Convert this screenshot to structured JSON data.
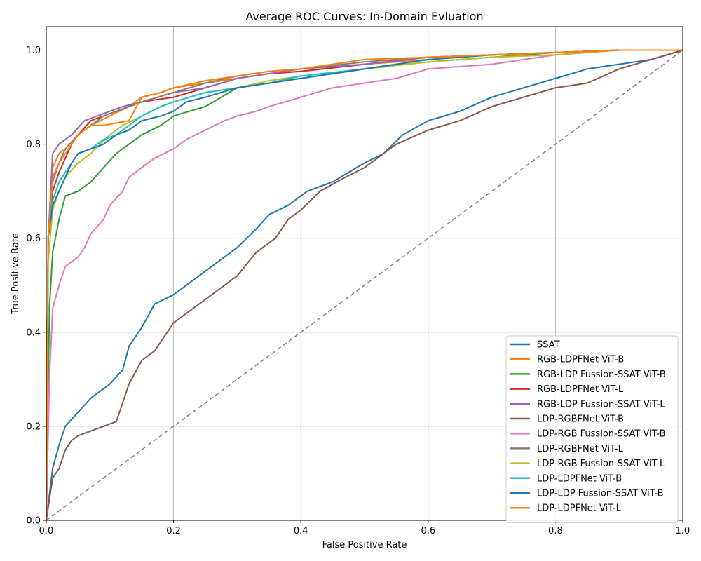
{
  "chart_data": {
    "type": "line",
    "title": "Average ROC Curves: In-Domain Evluation",
    "xlabel": "False Positive Rate",
    "ylabel": "True Positive Rate",
    "xlim": [
      0.0,
      1.0
    ],
    "ylim": [
      0.0,
      1.05
    ],
    "xticks": [
      0.0,
      0.2,
      0.4,
      0.6,
      0.8,
      1.0
    ],
    "yticks": [
      0.0,
      0.2,
      0.4,
      0.6,
      0.8,
      1.0
    ],
    "xtick_labels": [
      "0.0",
      "0.2",
      "0.4",
      "0.6",
      "0.8",
      "1.0"
    ],
    "ytick_labels": [
      "0.0",
      "0.2",
      "0.4",
      "0.6",
      "0.8",
      "1.0"
    ],
    "grid": true,
    "legend_position": "lower-right",
    "diagonal": {
      "x": [
        0,
        1
      ],
      "y": [
        0,
        1
      ],
      "style": "dashed",
      "color": "#808080"
    },
    "series": [
      {
        "name": "SSAT",
        "color": "#1f77b4",
        "x": [
          0,
          0.01,
          0.02,
          0.03,
          0.05,
          0.07,
          0.1,
          0.12,
          0.13,
          0.15,
          0.17,
          0.2,
          0.24,
          0.27,
          0.3,
          0.33,
          0.35,
          0.38,
          0.41,
          0.45,
          0.5,
          0.53,
          0.56,
          0.6,
          0.65,
          0.7,
          0.75,
          0.8,
          0.85,
          0.9,
          0.95,
          1.0
        ],
        "y": [
          0,
          0.11,
          0.16,
          0.2,
          0.23,
          0.26,
          0.29,
          0.32,
          0.37,
          0.41,
          0.46,
          0.48,
          0.52,
          0.55,
          0.58,
          0.62,
          0.65,
          0.67,
          0.7,
          0.72,
          0.76,
          0.78,
          0.82,
          0.85,
          0.87,
          0.9,
          0.92,
          0.94,
          0.96,
          0.97,
          0.98,
          1.0
        ]
      },
      {
        "name": "RGB-LDPFNet ViT-B",
        "color": "#ff7f0e",
        "x": [
          0,
          0.003,
          0.01,
          0.02,
          0.03,
          0.05,
          0.07,
          0.1,
          0.13,
          0.15,
          0.18,
          0.2,
          0.25,
          0.3,
          0.35,
          0.4,
          0.5,
          0.6,
          0.7,
          0.8,
          0.9,
          1.0
        ],
        "y": [
          0,
          0.6,
          0.75,
          0.78,
          0.79,
          0.82,
          0.84,
          0.86,
          0.88,
          0.9,
          0.91,
          0.92,
          0.93,
          0.94,
          0.95,
          0.955,
          0.97,
          0.98,
          0.99,
          0.995,
          1.0,
          1.0
        ]
      },
      {
        "name": "RGB-LDP Fussion-SSAT ViT-B",
        "color": "#2ca02c",
        "x": [
          0,
          0.005,
          0.01,
          0.02,
          0.03,
          0.05,
          0.07,
          0.09,
          0.11,
          0.13,
          0.15,
          0.18,
          0.2,
          0.25,
          0.3,
          0.35,
          0.4,
          0.5,
          0.6,
          0.7,
          0.8,
          0.9,
          1.0
        ],
        "y": [
          0,
          0.45,
          0.57,
          0.64,
          0.69,
          0.7,
          0.72,
          0.75,
          0.78,
          0.8,
          0.82,
          0.84,
          0.86,
          0.88,
          0.92,
          0.93,
          0.94,
          0.96,
          0.975,
          0.985,
          0.995,
          1.0,
          1.0
        ]
      },
      {
        "name": "RGB-LDPFNet ViT-L",
        "color": "#d62728",
        "x": [
          0,
          0.003,
          0.01,
          0.02,
          0.03,
          0.04,
          0.05,
          0.07,
          0.09,
          0.11,
          0.13,
          0.15,
          0.2,
          0.25,
          0.3,
          0.35,
          0.4,
          0.5,
          0.6,
          0.7,
          0.8,
          0.9,
          1.0
        ],
        "y": [
          0,
          0.6,
          0.7,
          0.74,
          0.77,
          0.8,
          0.82,
          0.85,
          0.86,
          0.87,
          0.88,
          0.89,
          0.9,
          0.92,
          0.94,
          0.95,
          0.955,
          0.97,
          0.985,
          0.99,
          0.995,
          1.0,
          1.0
        ]
      },
      {
        "name": "RGB-LDP Fussion-SSAT ViT-L",
        "color": "#9467bd",
        "x": [
          0,
          0.003,
          0.01,
          0.02,
          0.03,
          0.04,
          0.06,
          0.08,
          0.1,
          0.12,
          0.15,
          0.2,
          0.25,
          0.3,
          0.35,
          0.4,
          0.5,
          0.6,
          0.7,
          0.8,
          0.9,
          1.0
        ],
        "y": [
          0,
          0.6,
          0.78,
          0.8,
          0.81,
          0.82,
          0.85,
          0.86,
          0.87,
          0.88,
          0.89,
          0.91,
          0.92,
          0.94,
          0.95,
          0.96,
          0.97,
          0.985,
          0.99,
          0.995,
          1.0,
          1.0
        ]
      },
      {
        "name": "LDP-RGBFNet ViT-B",
        "color": "#8c564b",
        "x": [
          0,
          0.01,
          0.02,
          0.03,
          0.04,
          0.05,
          0.07,
          0.09,
          0.11,
          0.12,
          0.13,
          0.15,
          0.17,
          0.2,
          0.23,
          0.26,
          0.3,
          0.33,
          0.36,
          0.38,
          0.4,
          0.43,
          0.47,
          0.5,
          0.55,
          0.6,
          0.65,
          0.7,
          0.75,
          0.8,
          0.85,
          0.9,
          0.95,
          1.0
        ],
        "y": [
          0,
          0.09,
          0.11,
          0.15,
          0.17,
          0.18,
          0.19,
          0.2,
          0.21,
          0.25,
          0.29,
          0.34,
          0.36,
          0.42,
          0.45,
          0.48,
          0.52,
          0.57,
          0.6,
          0.64,
          0.66,
          0.7,
          0.73,
          0.75,
          0.8,
          0.83,
          0.85,
          0.88,
          0.9,
          0.92,
          0.93,
          0.96,
          0.98,
          1.0
        ]
      },
      {
        "name": "LDP-RGB Fussion-SSAT ViT-B",
        "color": "#e377c2",
        "x": [
          0,
          0.005,
          0.01,
          0.02,
          0.03,
          0.05,
          0.06,
          0.07,
          0.09,
          0.1,
          0.12,
          0.13,
          0.15,
          0.17,
          0.2,
          0.22,
          0.25,
          0.28,
          0.3,
          0.33,
          0.35,
          0.4,
          0.45,
          0.5,
          0.55,
          0.6,
          0.7,
          0.75,
          0.8,
          0.9,
          1.0
        ],
        "y": [
          0,
          0.3,
          0.45,
          0.5,
          0.54,
          0.56,
          0.58,
          0.61,
          0.64,
          0.67,
          0.7,
          0.73,
          0.75,
          0.77,
          0.79,
          0.81,
          0.83,
          0.85,
          0.86,
          0.87,
          0.88,
          0.9,
          0.92,
          0.93,
          0.94,
          0.96,
          0.97,
          0.98,
          0.99,
          1.0,
          1.0
        ]
      },
      {
        "name": "LDP-RGBFNet ViT-L",
        "color": "#7f7f7f",
        "x": [
          0,
          0.003,
          0.01,
          0.02,
          0.03,
          0.05,
          0.07,
          0.09,
          0.11,
          0.13,
          0.15,
          0.2,
          0.25,
          0.3,
          0.35,
          0.4,
          0.5,
          0.6,
          0.7,
          0.8,
          0.9,
          1.0
        ],
        "y": [
          0,
          0.6,
          0.72,
          0.76,
          0.79,
          0.82,
          0.84,
          0.86,
          0.87,
          0.88,
          0.89,
          0.91,
          0.93,
          0.945,
          0.955,
          0.96,
          0.975,
          0.985,
          0.99,
          0.995,
          1.0,
          1.0
        ]
      },
      {
        "name": "LDP-RGB Fussion-SSAT ViT-L",
        "color": "#bcbd22",
        "x": [
          0,
          0.003,
          0.01,
          0.02,
          0.03,
          0.05,
          0.07,
          0.1,
          0.12,
          0.15,
          0.18,
          0.2,
          0.25,
          0.3,
          0.35,
          0.4,
          0.5,
          0.6,
          0.7,
          0.8,
          0.9,
          1.0
        ],
        "y": [
          0,
          0.55,
          0.66,
          0.7,
          0.73,
          0.76,
          0.78,
          0.82,
          0.84,
          0.86,
          0.88,
          0.89,
          0.91,
          0.92,
          0.935,
          0.945,
          0.96,
          0.975,
          0.985,
          0.99,
          1.0,
          1.0
        ]
      },
      {
        "name": "LDP-LDPFNet ViT-B",
        "color": "#17becf",
        "x": [
          0,
          0.003,
          0.01,
          0.02,
          0.03,
          0.04,
          0.05,
          0.07,
          0.09,
          0.11,
          0.13,
          0.15,
          0.18,
          0.2,
          0.25,
          0.3,
          0.35,
          0.4,
          0.5,
          0.6,
          0.7,
          0.8,
          0.9,
          1.0
        ],
        "y": [
          0,
          0.6,
          0.68,
          0.72,
          0.74,
          0.76,
          0.78,
          0.79,
          0.81,
          0.82,
          0.84,
          0.86,
          0.88,
          0.89,
          0.91,
          0.92,
          0.93,
          0.945,
          0.96,
          0.98,
          0.99,
          0.995,
          1.0,
          1.0
        ]
      },
      {
        "name": "LDP-LDP Fussion-SSAT ViT-B",
        "color": "#1f77b4",
        "x": [
          0,
          0.003,
          0.01,
          0.02,
          0.03,
          0.04,
          0.05,
          0.07,
          0.09,
          0.11,
          0.13,
          0.15,
          0.18,
          0.2,
          0.22,
          0.25,
          0.3,
          0.35,
          0.4,
          0.5,
          0.6,
          0.7,
          0.8,
          0.9,
          1.0
        ],
        "y": [
          0,
          0.6,
          0.67,
          0.7,
          0.73,
          0.76,
          0.78,
          0.79,
          0.8,
          0.82,
          0.83,
          0.85,
          0.86,
          0.87,
          0.89,
          0.9,
          0.92,
          0.93,
          0.94,
          0.96,
          0.98,
          0.99,
          0.995,
          1.0,
          1.0
        ]
      },
      {
        "name": "LDP-LDPFNet ViT-L",
        "color": "#ff7f0e",
        "x": [
          0,
          0.003,
          0.01,
          0.02,
          0.03,
          0.04,
          0.05,
          0.07,
          0.09,
          0.11,
          0.13,
          0.15,
          0.18,
          0.2,
          0.25,
          0.3,
          0.35,
          0.4,
          0.5,
          0.6,
          0.7,
          0.8,
          0.9,
          1.0
        ],
        "y": [
          0,
          0.6,
          0.73,
          0.76,
          0.78,
          0.8,
          0.82,
          0.84,
          0.84,
          0.845,
          0.85,
          0.9,
          0.91,
          0.92,
          0.935,
          0.945,
          0.955,
          0.96,
          0.98,
          0.985,
          0.99,
          0.995,
          1.0,
          1.0
        ]
      }
    ]
  }
}
